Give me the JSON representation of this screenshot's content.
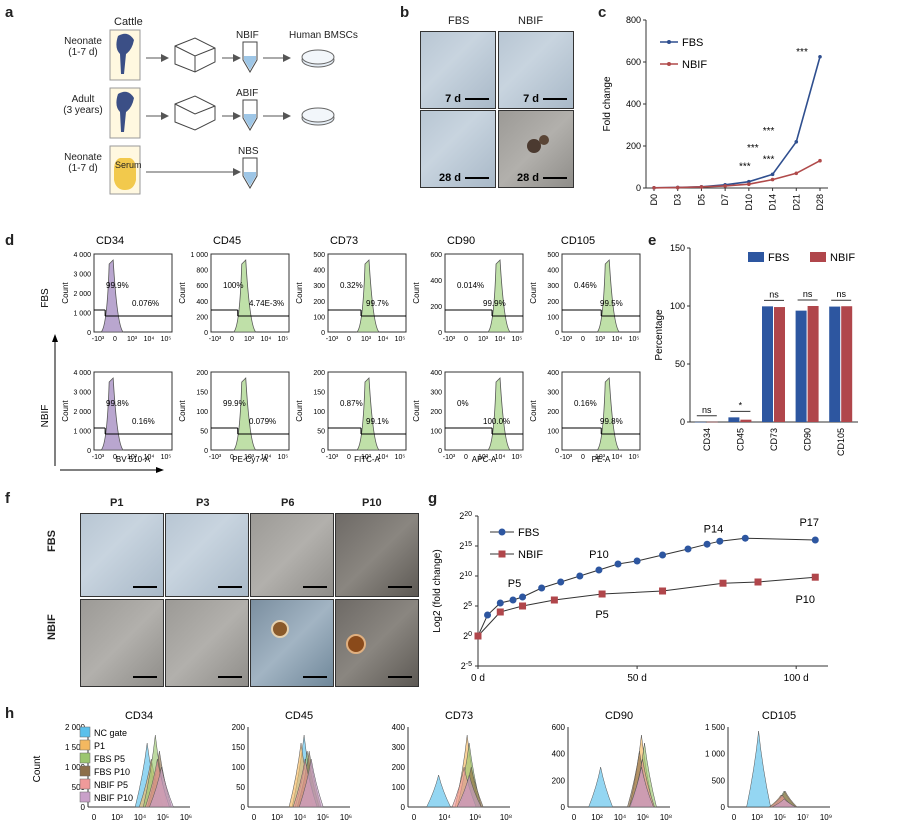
{
  "panel_labels": {
    "a": "a",
    "b": "b",
    "c": "c",
    "d": "d",
    "e": "e",
    "f": "f",
    "g": "g",
    "h": "h"
  },
  "panel_a": {
    "cattle": "Cattle",
    "rows": [
      {
        "source": "Neonate",
        "age": "(1-7 d)",
        "product": "NBIF",
        "target": "Human BMSCs"
      },
      {
        "source": "Adult",
        "age": "(3 years)",
        "product": "ABIF",
        "target": ""
      },
      {
        "source": "Neonate",
        "age": "(1-7 d)",
        "product": "NBS",
        "target": ""
      }
    ],
    "serum_label": "Serum"
  },
  "panel_b": {
    "col_labels": [
      "FBS",
      "NBIF"
    ],
    "captions": [
      "7 d",
      "7 d",
      "28 d",
      "28 d"
    ]
  },
  "chart_data": [
    {
      "panel": "c",
      "type": "line",
      "ylabel": "Fold change",
      "ylim": [
        0,
        800
      ],
      "yticks": [
        "0",
        "200",
        "400",
        "600",
        "800"
      ],
      "categories": [
        "D0",
        "D3",
        "D5",
        "D7",
        "D10",
        "D14",
        "D21",
        "D28"
      ],
      "series": [
        {
          "name": "FBS",
          "color": "#2f4f8f",
          "values": [
            1,
            3,
            6,
            15,
            30,
            65,
            220,
            625
          ]
        },
        {
          "name": "NBIF",
          "color": "#b04a4a",
          "values": [
            1,
            2,
            5,
            10,
            18,
            40,
            70,
            130
          ]
        }
      ],
      "significance": [
        {
          "at": "D10",
          "label": "***"
        },
        {
          "at": "D14",
          "label": "***"
        },
        {
          "at": "D14",
          "label": "***"
        },
        {
          "at": "D21",
          "label": "***"
        },
        {
          "at": "D28",
          "label": "***"
        }
      ]
    },
    {
      "panel": "e",
      "type": "bar",
      "ylabel": "Percentage",
      "ylim": [
        0,
        150
      ],
      "yticks": [
        "0",
        "50",
        "100",
        "150"
      ],
      "categories": [
        "CD34",
        "CD45",
        "CD73",
        "CD90",
        "CD105"
      ],
      "series": [
        {
          "name": "FBS",
          "color": "#2d56a0",
          "values": [
            0.1,
            4,
            99.7,
            96,
            99.5
          ]
        },
        {
          "name": "NBIF",
          "color": "#b0464b",
          "values": [
            0.2,
            2,
            99.1,
            100,
            99.8
          ]
        }
      ],
      "significance": [
        "ns",
        "*",
        "ns",
        "ns",
        "ns"
      ]
    },
    {
      "panel": "g",
      "type": "line",
      "ylabel": "Log2 (fold change)",
      "ytick_exponents": [
        "-5",
        "0",
        "5",
        "10",
        "15",
        "20"
      ],
      "yrange": [
        -5,
        20
      ],
      "xrange": [
        0,
        110
      ],
      "xticks": [
        "0 d",
        "50 d",
        "100 d"
      ],
      "series": [
        {
          "name": "FBS",
          "color": "#2d56a0",
          "x": [
            0,
            3,
            7,
            11,
            14,
            20,
            26,
            32,
            38,
            44,
            50,
            58,
            66,
            72,
            76,
            84,
            106
          ],
          "y": [
            0,
            3.5,
            5.5,
            6,
            6.5,
            8,
            9,
            10,
            11,
            12,
            12.5,
            13.5,
            14.5,
            15.3,
            15.8,
            16.3,
            16
          ]
        },
        {
          "name": "NBIF",
          "color": "#b0464b",
          "x": [
            0,
            7,
            14,
            24,
            39,
            58,
            77,
            88,
            106
          ],
          "y": [
            0,
            4,
            5,
            6,
            7,
            7.5,
            8.8,
            9,
            9.8
          ]
        }
      ],
      "annotations": [
        "P5",
        "P10",
        "P14",
        "P17",
        "P5",
        "P10"
      ]
    }
  ],
  "panel_d": {
    "markers": [
      "CD34",
      "CD45",
      "CD73",
      "CD90",
      "CD105"
    ],
    "row_labels": [
      "FBS",
      "NBIF"
    ],
    "xlabels": [
      "BV 510-A",
      "PE-Cy7-A",
      "FITC-A",
      "APC-A",
      "PE-A"
    ],
    "yaxis_title": "Count",
    "xticks": [
      "-10³",
      "0",
      "10³",
      "10⁴",
      "10⁵"
    ],
    "yticks": [
      [
        "4 000",
        "3 000",
        "2 000",
        "1 000",
        "0"
      ],
      [
        "1 000",
        "800",
        "600",
        "400",
        "200",
        "0"
      ],
      [
        "500",
        "400",
        "300",
        "200",
        "100",
        "0"
      ],
      [
        "600",
        "400",
        "200",
        "0"
      ],
      [
        "500",
        "400",
        "300",
        "200",
        "100",
        "0"
      ]
    ],
    "yticks_row2": [
      [
        "4 000",
        "3 000",
        "2 000",
        "1 000",
        "0"
      ],
      [
        "200",
        "150",
        "100",
        "50",
        "0"
      ],
      [
        "200",
        "150",
        "100",
        "50",
        "0"
      ],
      [
        "400",
        "300",
        "200",
        "100",
        "0"
      ],
      [
        "400",
        "300",
        "200",
        "100",
        "0"
      ]
    ],
    "fbs_pcts": [
      [
        "99.9%",
        "0.076%"
      ],
      [
        "100%",
        "4.74E-3%"
      ],
      [
        "0.32%",
        "99.7%"
      ],
      [
        "0.014%",
        "99.9%"
      ],
      [
        "0.46%",
        "99.5%"
      ]
    ],
    "nbif_pcts": [
      [
        "99.8%",
        "0.16%"
      ],
      [
        "99.9%",
        "0.079%"
      ],
      [
        "0.87%",
        "99.1%"
      ],
      [
        "0%",
        "100.0%"
      ],
      [
        "0.16%",
        "99.8%"
      ]
    ]
  },
  "panel_f": {
    "col_labels": [
      "P1",
      "P3",
      "P6",
      "P10"
    ],
    "row_labels": [
      "FBS",
      "NBIF"
    ]
  },
  "panel_h": {
    "markers": [
      "CD34",
      "CD45",
      "CD73",
      "CD90",
      "CD105"
    ],
    "yaxis_title": "Count",
    "legend": [
      "NC gate",
      "P1",
      "FBS P5",
      "FBS P10",
      "NBIF P5",
      "NBIF P10"
    ],
    "legend_colors": [
      "#5bc0eb",
      "#f4b860",
      "#9bc66f",
      "#8c6f4a",
      "#f09a9a",
      "#c9a0c9"
    ],
    "yticks": [
      [
        "2 000",
        "1 500",
        "1 000",
        "500",
        "0"
      ],
      [
        "200",
        "150",
        "100",
        "50",
        "0"
      ],
      [
        "400",
        "300",
        "200",
        "100",
        "0"
      ],
      [
        "600",
        "400",
        "200",
        "0"
      ],
      [
        "1 500",
        "1 000",
        "500",
        "0"
      ]
    ],
    "xticks": [
      [
        "0",
        "10³",
        "10⁴",
        "10⁵",
        "10⁶"
      ],
      [
        "0",
        "10³",
        "10⁴",
        "10⁵",
        "10⁶"
      ],
      [
        "0",
        "10⁴",
        "10⁶",
        "10⁸"
      ],
      [
        "0",
        "10²",
        "10⁴",
        "10⁶",
        "10⁸"
      ],
      [
        "0",
        "10³",
        "10⁵",
        "10⁷",
        "10⁹"
      ]
    ]
  }
}
